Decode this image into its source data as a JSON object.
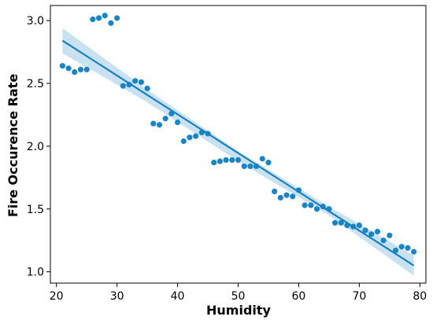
{
  "chart_data": {
    "type": "scatter",
    "title": "",
    "xlabel": "Humidity",
    "ylabel": "Fire Occurence Rate",
    "xlim": [
      19,
      81
    ],
    "ylim": [
      0.91,
      3.12
    ],
    "xticks": [
      20,
      30,
      40,
      50,
      60,
      70,
      80
    ],
    "yticks": [
      1.0,
      1.5,
      2.0,
      2.5,
      3.0
    ],
    "ytick_labels": [
      "1.0",
      "1.5",
      "2.0",
      "2.5",
      "3.0"
    ],
    "grid": false,
    "colors": {
      "point": "#1a85c4",
      "line": "#1a80bb",
      "band": "#9ccbe8"
    },
    "series": [
      {
        "x": [
          21,
          22,
          23,
          24,
          25,
          26,
          27,
          28,
          29,
          30,
          31,
          32,
          33,
          34,
          35,
          36,
          37,
          38,
          39,
          40,
          41,
          42,
          43,
          44,
          45,
          46,
          47,
          48,
          49,
          50,
          51,
          52,
          53,
          54,
          55,
          56,
          57,
          58,
          59,
          60,
          61,
          62,
          63,
          64,
          65,
          66,
          67,
          68,
          69,
          70,
          71,
          72,
          73,
          74,
          75,
          76,
          77,
          78,
          79
        ],
        "y": [
          2.64,
          2.62,
          2.59,
          2.61,
          2.61,
          3.01,
          3.02,
          3.04,
          2.98,
          3.02,
          2.48,
          2.49,
          2.52,
          2.51,
          2.46,
          2.18,
          2.17,
          2.22,
          2.26,
          2.19,
          2.04,
          2.07,
          2.08,
          2.11,
          2.1,
          1.87,
          1.88,
          1.89,
          1.89,
          1.89,
          1.84,
          1.84,
          1.84,
          1.9,
          1.87,
          1.64,
          1.59,
          1.61,
          1.6,
          1.65,
          1.53,
          1.53,
          1.5,
          1.52,
          1.5,
          1.39,
          1.39,
          1.37,
          1.36,
          1.37,
          1.33,
          1.3,
          1.32,
          1.25,
          1.29,
          1.17,
          1.2,
          1.19,
          1.16
        ]
      }
    ],
    "regression": {
      "x_range": [
        21,
        79
      ],
      "y_range": [
        2.84,
        1.05
      ],
      "ci": [
        {
          "x": 21,
          "lo": 2.74,
          "hi": 2.94
        },
        {
          "x": 35,
          "lo": 2.35,
          "hi": 2.45
        },
        {
          "x": 50,
          "lo": 1.88,
          "hi": 1.96
        },
        {
          "x": 65,
          "lo": 1.45,
          "hi": 1.52
        },
        {
          "x": 79,
          "lo": 0.97,
          "hi": 1.13
        }
      ]
    }
  }
}
